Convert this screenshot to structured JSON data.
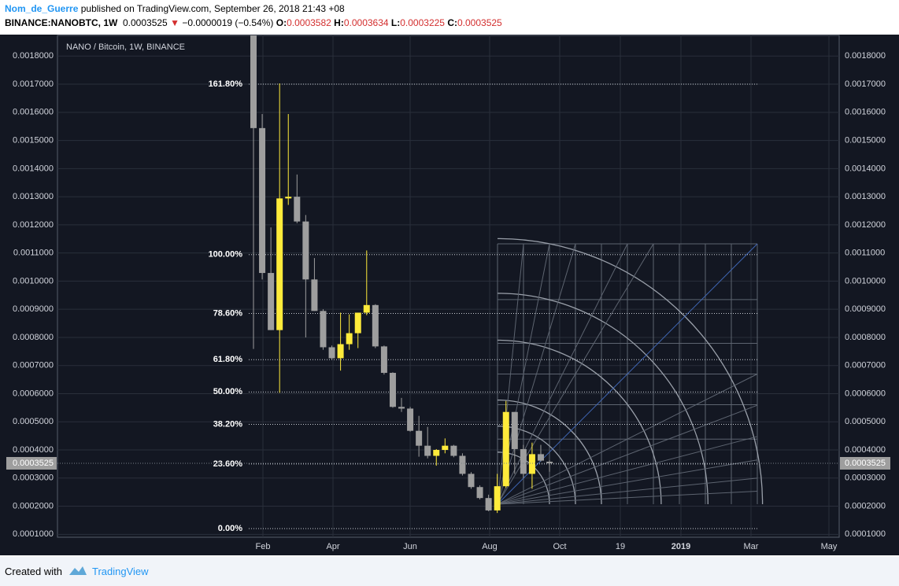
{
  "header": {
    "author": "Nom_de_Guerre",
    "published": "published on TradingView.com, September 26, 2018 21:43 +08",
    "symbol": "BINANCE:NANOBTC, 1W",
    "change": "−0.0000019 (−0.54%)",
    "open_label": "O:",
    "high_label": "H:",
    "low_label": "L:",
    "close_label": "C:"
  },
  "footer": {
    "created": "Created with",
    "brand": "TradingView"
  },
  "chart_data": {
    "type": "candlestick",
    "title": "NANO / Bitcoin, 1W, BINANCE",
    "up_color": "#ffeb3b",
    "down_color": "#9e9e9e",
    "xtick_labels": [
      "Feb",
      "Apr",
      "Jun",
      "Aug",
      "Oct",
      "19",
      "2019",
      "Mar",
      "May"
    ],
    "ylim": [
      8.97e-05,
      0.0018735
    ],
    "yticks": [
      {
        "value": 0.0018,
        "label": "0.0018000"
      },
      {
        "value": 0.0017,
        "label": "0.0017000"
      },
      {
        "value": 0.0016,
        "label": "0.0016000"
      },
      {
        "value": 0.0015,
        "label": "0.0015000"
      },
      {
        "value": 0.0014,
        "label": "0.0014000"
      },
      {
        "value": 0.0013,
        "label": "0.0013000"
      },
      {
        "value": 0.0012,
        "label": "0.0012000"
      },
      {
        "value": 0.0011,
        "label": "0.0011000"
      },
      {
        "value": 0.001,
        "label": "0.0010000"
      },
      {
        "value": 0.0009,
        "label": "0.0009000"
      },
      {
        "value": 0.0008,
        "label": "0.0008000"
      },
      {
        "value": 0.0007,
        "label": "0.0007000"
      },
      {
        "value": 0.0006,
        "label": "0.0006000"
      },
      {
        "value": 0.0005,
        "label": "0.0005000"
      },
      {
        "value": 0.0004,
        "label": "0.0004000"
      },
      {
        "value": 0.0003,
        "label": "0.0003000"
      },
      {
        "value": 0.0002,
        "label": "0.0002000"
      },
      {
        "value": 0.0001,
        "label": "0.0001000"
      }
    ],
    "fib_levels": [
      {
        "label": "161.80%",
        "price": 0.0017
      },
      {
        "label": "100.00%",
        "price": 0.001094
      },
      {
        "label": "78.60%",
        "price": 0.000885
      },
      {
        "label": "61.80%",
        "price": 0.000721
      },
      {
        "label": "50.00%",
        "price": 0.000606
      },
      {
        "label": "38.20%",
        "price": 0.000491
      },
      {
        "label": "23.60%",
        "price": 0.00035
      },
      {
        "label": "0.00%",
        "price": 0.0001206
      }
    ],
    "candles": [
      {
        "open": 0.00189,
        "high": 0.0019,
        "low": 0.000759,
        "close": 0.001544
      },
      {
        "open": 0.001544,
        "high": 0.001594,
        "low": 0.001006,
        "close": 0.001029
      },
      {
        "open": 0.001029,
        "high": 0.001191,
        "low": 0.000826,
        "close": 0.000826
      },
      {
        "open": 0.000826,
        "high": 0.001703,
        "low": 0.000603,
        "close": 0.001294
      },
      {
        "open": 0.001294,
        "high": 0.001594,
        "low": 0.001271,
        "close": 0.0013
      },
      {
        "open": 0.0013,
        "high": 0.001379,
        "low": 0.001206,
        "close": 0.001212
      },
      {
        "open": 0.001212,
        "high": 0.001235,
        "low": 0.0008,
        "close": 0.001006
      },
      {
        "open": 0.001006,
        "high": 0.001082,
        "low": 0.000894,
        "close": 0.000894
      },
      {
        "open": 0.000894,
        "high": 0.0009,
        "low": 0.000756,
        "close": 0.000765
      },
      {
        "open": 0.000765,
        "high": 0.000771,
        "low": 0.000721,
        "close": 0.000726
      },
      {
        "open": 0.000726,
        "high": 0.000888,
        "low": 0.000682,
        "close": 0.000776
      },
      {
        "open": 0.000776,
        "high": 0.000882,
        "low": 0.000756,
        "close": 0.000815
      },
      {
        "open": 0.000815,
        "high": 0.000888,
        "low": 0.000762,
        "close": 0.000888
      },
      {
        "open": 0.000888,
        "high": 0.001109,
        "low": 0.000879,
        "close": 0.000915
      },
      {
        "open": 0.000915,
        "high": 0.000918,
        "low": 0.000762,
        "close": 0.000768
      },
      {
        "open": 0.000768,
        "high": 0.000771,
        "low": 0.000668,
        "close": 0.000674
      },
      {
        "open": 0.000674,
        "high": 0.000676,
        "low": 0.00055,
        "close": 0.000553
      },
      {
        "open": 0.000553,
        "high": 0.000585,
        "low": 0.000535,
        "close": 0.000547
      },
      {
        "open": 0.000547,
        "high": 0.000553,
        "low": 0.000465,
        "close": 0.000468
      },
      {
        "open": 0.000468,
        "high": 0.000521,
        "low": 0.000376,
        "close": 0.000415
      },
      {
        "open": 0.000415,
        "high": 0.000482,
        "low": 0.00037,
        "close": 0.000379
      },
      {
        "open": 0.000379,
        "high": 0.000403,
        "low": 0.000344,
        "close": 0.0004
      },
      {
        "open": 0.0004,
        "high": 0.000441,
        "low": 0.000388,
        "close": 0.000415
      },
      {
        "open": 0.000415,
        "high": 0.000418,
        "low": 0.000374,
        "close": 0.000379
      },
      {
        "open": 0.000379,
        "high": 0.000388,
        "low": 0.000309,
        "close": 0.000315
      },
      {
        "open": 0.000315,
        "high": 0.000321,
        "low": 0.000262,
        "close": 0.000268
      },
      {
        "open": 0.000268,
        "high": 0.000274,
        "low": 0.000224,
        "close": 0.000229
      },
      {
        "open": 0.000229,
        "high": 0.000241,
        "low": 0.000182,
        "close": 0.000185
      },
      {
        "open": 0.000185,
        "high": 0.000315,
        "low": 0.000176,
        "close": 0.000271
      },
      {
        "open": 0.000271,
        "high": 0.000574,
        "low": 0.000265,
        "close": 0.000535
      },
      {
        "open": 0.000535,
        "high": 0.000535,
        "low": 0.000315,
        "close": 0.000403
      },
      {
        "open": 0.000403,
        "high": 0.000418,
        "low": 0.0003,
        "close": 0.000315
      },
      {
        "open": 0.000315,
        "high": 0.000426,
        "low": 0.000262,
        "close": 0.000385
      },
      {
        "open": 0.000385,
        "high": 0.000418,
        "low": 0.000359,
        "close": 0.000362
      },
      {
        "open": 0.0003582,
        "high": 0.0003634,
        "low": 0.0003225,
        "close": 0.0003525
      }
    ]
  }
}
